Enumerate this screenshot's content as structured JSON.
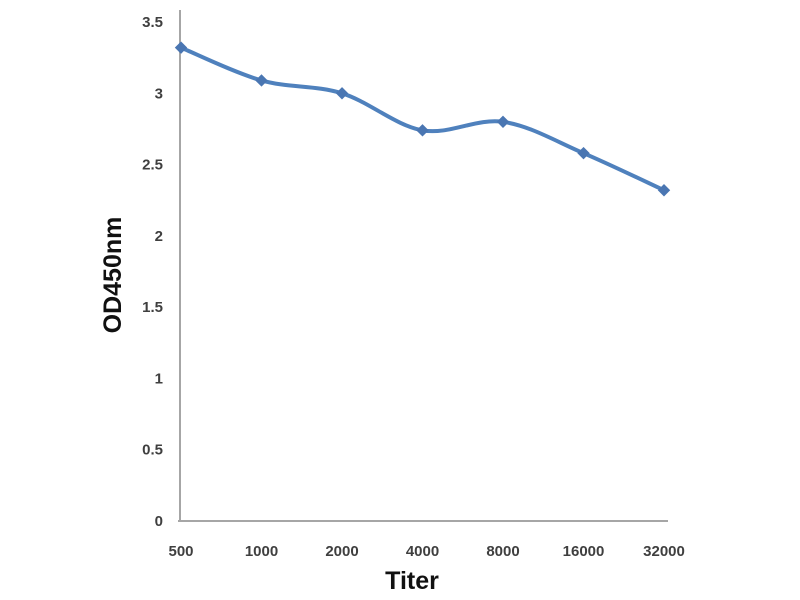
{
  "chart_data": {
    "type": "line",
    "title": "",
    "xlabel": "Titer",
    "ylabel": "OD450nm",
    "categories": [
      "500",
      "1000",
      "2000",
      "4000",
      "8000",
      "16000",
      "32000"
    ],
    "series": [
      {
        "name": "OD450nm",
        "values": [
          3.32,
          3.09,
          3.0,
          2.74,
          2.8,
          2.58,
          2.32
        ]
      }
    ],
    "ylim": [
      0,
      3.5
    ],
    "ytick_step": 0.5,
    "yticks": [
      "0",
      "0.5",
      "1",
      "1.5",
      "2",
      "2.5",
      "3",
      "3.5"
    ],
    "grid": false,
    "legend": false,
    "smooth_line": true,
    "marker": "diamond",
    "colors": {
      "line": "#4f81bd",
      "marker": "#4a76b2",
      "axis": "#a6a6a6",
      "tick_text": "#3f3f3f",
      "title_text": "#111111",
      "background": "#ffffff"
    }
  }
}
